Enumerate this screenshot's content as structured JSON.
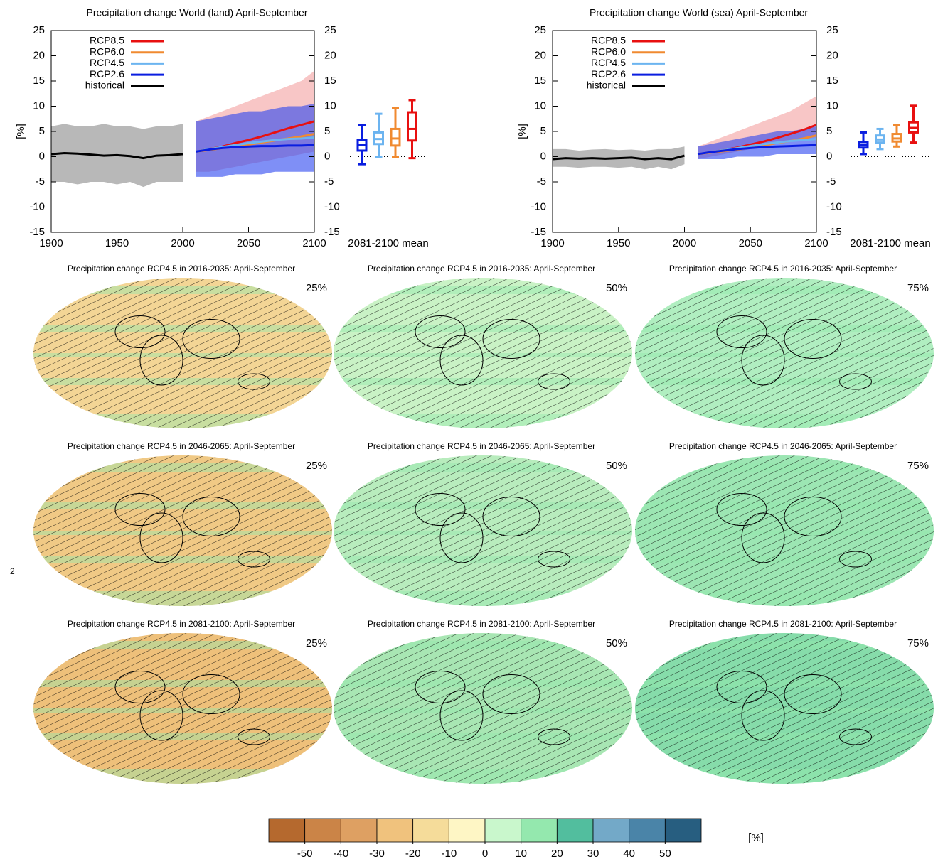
{
  "page_number": "2",
  "chart_data": [
    {
      "type": "line",
      "title": "Precipitation change World (land) April-September",
      "ylabel": "[%]",
      "box_label": "2081-2100 mean",
      "x": [
        1900,
        1910,
        1920,
        1930,
        1940,
        1950,
        1960,
        1970,
        1980,
        1990,
        2000,
        2010,
        2020,
        2030,
        2040,
        2050,
        2060,
        2070,
        2080,
        2090,
        2100
      ],
      "xlim": [
        1900,
        2100
      ],
      "xticks": [
        1900,
        1950,
        2000,
        2050,
        2100
      ],
      "ylim": [
        -15,
        25
      ],
      "yticks": [
        -15,
        -10,
        -5,
        0,
        5,
        10,
        15,
        20,
        25
      ],
      "series": [
        {
          "name": "RCP8.5",
          "color": "#e81010",
          "values": [
            null,
            null,
            null,
            null,
            null,
            null,
            null,
            null,
            null,
            null,
            null,
            1.0,
            1.5,
            2.0,
            2.7,
            3.3,
            4.0,
            4.8,
            5.6,
            6.3,
            7.0
          ]
        },
        {
          "name": "RCP6.0",
          "color": "#f08a30",
          "values": [
            null,
            null,
            null,
            null,
            null,
            null,
            null,
            null,
            null,
            null,
            null,
            1.0,
            1.3,
            1.7,
            2.0,
            2.4,
            2.8,
            3.2,
            3.6,
            4.0,
            4.5
          ]
        },
        {
          "name": "RCP4.5",
          "color": "#6cb4f0",
          "values": [
            null,
            null,
            null,
            null,
            null,
            null,
            null,
            null,
            null,
            null,
            null,
            1.0,
            1.5,
            1.9,
            2.3,
            2.7,
            3.0,
            3.3,
            3.5,
            3.6,
            3.8
          ]
        },
        {
          "name": "RCP2.6",
          "color": "#0a1ee0",
          "values": [
            null,
            null,
            null,
            null,
            null,
            null,
            null,
            null,
            null,
            null,
            null,
            1.0,
            1.4,
            1.7,
            1.9,
            2.0,
            2.1,
            2.1,
            2.2,
            2.2,
            2.3
          ]
        },
        {
          "name": "historical",
          "color": "#000000",
          "values": [
            0.5,
            0.7,
            0.6,
            0.4,
            0.2,
            0.3,
            0.1,
            -0.3,
            0.2,
            0.3,
            0.5,
            null,
            null,
            null,
            null,
            null,
            null,
            null,
            null,
            null,
            null
          ]
        }
      ],
      "bands": [
        {
          "color": "#888888",
          "upper": [
            6,
            6.5,
            6,
            6,
            6.5,
            6,
            6,
            5.5,
            6,
            6,
            6.5,
            null,
            null,
            null,
            null,
            null,
            null,
            null,
            null,
            null,
            null
          ],
          "lower": [
            -5,
            -5,
            -5.5,
            -5,
            -5,
            -5.5,
            -5,
            -6,
            -5,
            -5,
            -5,
            null,
            null,
            null,
            null,
            null,
            null,
            null,
            null,
            null,
            null
          ]
        },
        {
          "color": "#f4a0a0",
          "upper": [
            null,
            null,
            null,
            null,
            null,
            null,
            null,
            null,
            null,
            null,
            null,
            7,
            8,
            9,
            10,
            11,
            12,
            13,
            14,
            15,
            17
          ],
          "lower": [
            null,
            null,
            null,
            null,
            null,
            null,
            null,
            null,
            null,
            null,
            null,
            -3,
            -3,
            -2.5,
            -2,
            -1.5,
            -1,
            -0.5,
            0,
            0.5,
            1
          ]
        },
        {
          "color": "#2a44f0",
          "upper": [
            null,
            null,
            null,
            null,
            null,
            null,
            null,
            null,
            null,
            null,
            null,
            7,
            7.5,
            8,
            8.5,
            9,
            9,
            9.5,
            10,
            10,
            10.5
          ],
          "lower": [
            null,
            null,
            null,
            null,
            null,
            null,
            null,
            null,
            null,
            null,
            null,
            -4,
            -4,
            -4,
            -3.5,
            -3.5,
            -3.5,
            -3,
            -3,
            -3,
            -3
          ]
        }
      ],
      "boxes": [
        {
          "color": "#0a1ee0",
          "values": [
            -1.5,
            1.2,
            2.3,
            3.3,
            6.2
          ]
        },
        {
          "color": "#6cb4f0",
          "values": [
            0,
            2.5,
            3.5,
            4.8,
            8.5
          ]
        },
        {
          "color": "#f08a30",
          "values": [
            0,
            2.2,
            3.6,
            5.5,
            9.6
          ]
        },
        {
          "color": "#e81010",
          "values": [
            -0.3,
            3.2,
            5.5,
            8.8,
            11.2
          ]
        }
      ]
    },
    {
      "type": "line",
      "title": "Precipitation change World (sea) April-September",
      "ylabel": "[%]",
      "box_label": "2081-2100 mean",
      "x": [
        1900,
        1910,
        1920,
        1930,
        1940,
        1950,
        1960,
        1970,
        1980,
        1990,
        2000,
        2010,
        2020,
        2030,
        2040,
        2050,
        2060,
        2070,
        2080,
        2090,
        2100
      ],
      "xlim": [
        1900,
        2100
      ],
      "xticks": [
        1900,
        1950,
        2000,
        2050,
        2100
      ],
      "ylim": [
        -15,
        25
      ],
      "yticks": [
        -15,
        -10,
        -5,
        0,
        5,
        10,
        15,
        20,
        25
      ],
      "series": [
        {
          "name": "RCP8.5",
          "color": "#e81010",
          "values": [
            null,
            null,
            null,
            null,
            null,
            null,
            null,
            null,
            null,
            null,
            null,
            0.5,
            0.9,
            1.3,
            1.8,
            2.4,
            3.0,
            3.7,
            4.5,
            5.3,
            6.3
          ]
        },
        {
          "name": "RCP6.0",
          "color": "#f08a30",
          "values": [
            null,
            null,
            null,
            null,
            null,
            null,
            null,
            null,
            null,
            null,
            null,
            0.5,
            0.8,
            1.1,
            1.4,
            1.8,
            2.2,
            2.7,
            3.1,
            3.6,
            4.2
          ]
        },
        {
          "name": "RCP4.5",
          "color": "#6cb4f0",
          "values": [
            null,
            null,
            null,
            null,
            null,
            null,
            null,
            null,
            null,
            null,
            null,
            0.5,
            0.9,
            1.3,
            1.7,
            2.1,
            2.5,
            2.8,
            3.1,
            3.3,
            3.5
          ]
        },
        {
          "name": "RCP2.6",
          "color": "#0a1ee0",
          "values": [
            null,
            null,
            null,
            null,
            null,
            null,
            null,
            null,
            null,
            null,
            null,
            0.5,
            0.9,
            1.2,
            1.5,
            1.7,
            1.9,
            2.0,
            2.1,
            2.2,
            2.3
          ]
        },
        {
          "name": "historical",
          "color": "#000000",
          "values": [
            -0.5,
            -0.3,
            -0.4,
            -0.3,
            -0.4,
            -0.3,
            -0.2,
            -0.5,
            -0.3,
            -0.5,
            0.2,
            null,
            null,
            null,
            null,
            null,
            null,
            null,
            null,
            null,
            null
          ]
        }
      ],
      "bands": [
        {
          "color": "#888888",
          "upper": [
            1.5,
            1.5,
            1.2,
            1.4,
            1.5,
            1.3,
            1.4,
            1.2,
            1.5,
            1.5,
            2,
            null,
            null,
            null,
            null,
            null,
            null,
            null,
            null,
            null,
            null
          ],
          "lower": [
            -2,
            -2,
            -2.2,
            -2,
            -2,
            -2.2,
            -2,
            -2.5,
            -2,
            -2.5,
            -1.5,
            null,
            null,
            null,
            null,
            null,
            null,
            null,
            null,
            null,
            null
          ]
        },
        {
          "color": "#f4a0a0",
          "upper": [
            null,
            null,
            null,
            null,
            null,
            null,
            null,
            null,
            null,
            null,
            null,
            2,
            3,
            4,
            5,
            6,
            7,
            8,
            9,
            10.5,
            12
          ],
          "lower": [
            null,
            null,
            null,
            null,
            null,
            null,
            null,
            null,
            null,
            null,
            null,
            -0.5,
            0,
            0.5,
            1,
            1.5,
            2,
            2.5,
            3,
            3.5,
            4
          ]
        },
        {
          "color": "#2a44f0",
          "upper": [
            null,
            null,
            null,
            null,
            null,
            null,
            null,
            null,
            null,
            null,
            null,
            2,
            2.5,
            3,
            3.5,
            4,
            4.5,
            5,
            5,
            5.5,
            6
          ],
          "lower": [
            null,
            null,
            null,
            null,
            null,
            null,
            null,
            null,
            null,
            null,
            null,
            -0.5,
            -0.5,
            -0.5,
            0,
            0,
            0,
            0.5,
            0.5,
            0.5,
            0.5
          ]
        }
      ],
      "boxes": [
        {
          "color": "#0a1ee0",
          "values": [
            0.5,
            1.8,
            2.3,
            2.9,
            4.8
          ]
        },
        {
          "color": "#6cb4f0",
          "values": [
            1.5,
            2.8,
            3.4,
            4.2,
            5.5
          ]
        },
        {
          "color": "#f08a30",
          "values": [
            2.0,
            3.0,
            3.6,
            4.5,
            6.3
          ]
        },
        {
          "color": "#e81010",
          "values": [
            2.8,
            4.8,
            5.7,
            6.8,
            10.1
          ]
        }
      ]
    },
    {
      "type": "map",
      "title": "Precipitation change RCP4.5 in 2016-2035: April-September",
      "label": "25%",
      "color": "#f3d595"
    },
    {
      "type": "map",
      "title": "Precipitation change RCP4.5 in 2016-2035: April-September",
      "label": "50%",
      "color": "#c9f2c5"
    },
    {
      "type": "map",
      "title": "Precipitation change RCP4.5 in 2016-2035: April-September",
      "label": "75%",
      "color": "#b0eec0"
    },
    {
      "type": "map",
      "title": "Precipitation change RCP4.5 in 2046-2065: April-September",
      "label": "25%",
      "color": "#f0c985"
    },
    {
      "type": "map",
      "title": "Precipitation change RCP4.5 in 2046-2065: April-September",
      "label": "50%",
      "color": "#b8ecbd"
    },
    {
      "type": "map",
      "title": "Precipitation change RCP4.5 in 2046-2065: April-September",
      "label": "75%",
      "color": "#9ce6b3"
    },
    {
      "type": "map",
      "title": "Precipitation change RCP4.5 in 2081-2100: April-September",
      "label": "25%",
      "color": "#eec07a"
    },
    {
      "type": "map",
      "title": "Precipitation change RCP4.5 in 2081-2100: April-September",
      "label": "50%",
      "color": "#a8e6b3"
    },
    {
      "type": "map",
      "title": "Precipitation change RCP4.5 in 2081-2100: April-September",
      "label": "75%",
      "color": "#86dcaa"
    },
    {
      "type": "colorbar",
      "label": "[%]",
      "bins": [
        -60,
        -50,
        -40,
        -30,
        -20,
        -10,
        0,
        10,
        20,
        30,
        40,
        50,
        60
      ],
      "colors": [
        "#b5692e",
        "#cb8447",
        "#dea062",
        "#f0c27d",
        "#f5dc9a",
        "#fef6c5",
        "#c9f7cc",
        "#94e8ae",
        "#52be9e",
        "#73a9c8",
        "#4a84a8",
        "#275e80"
      ],
      "xlim": [
        -60,
        60
      ],
      "xticks": [
        -50,
        -40,
        -30,
        -20,
        -10,
        0,
        10,
        20,
        30,
        40,
        50
      ]
    }
  ]
}
